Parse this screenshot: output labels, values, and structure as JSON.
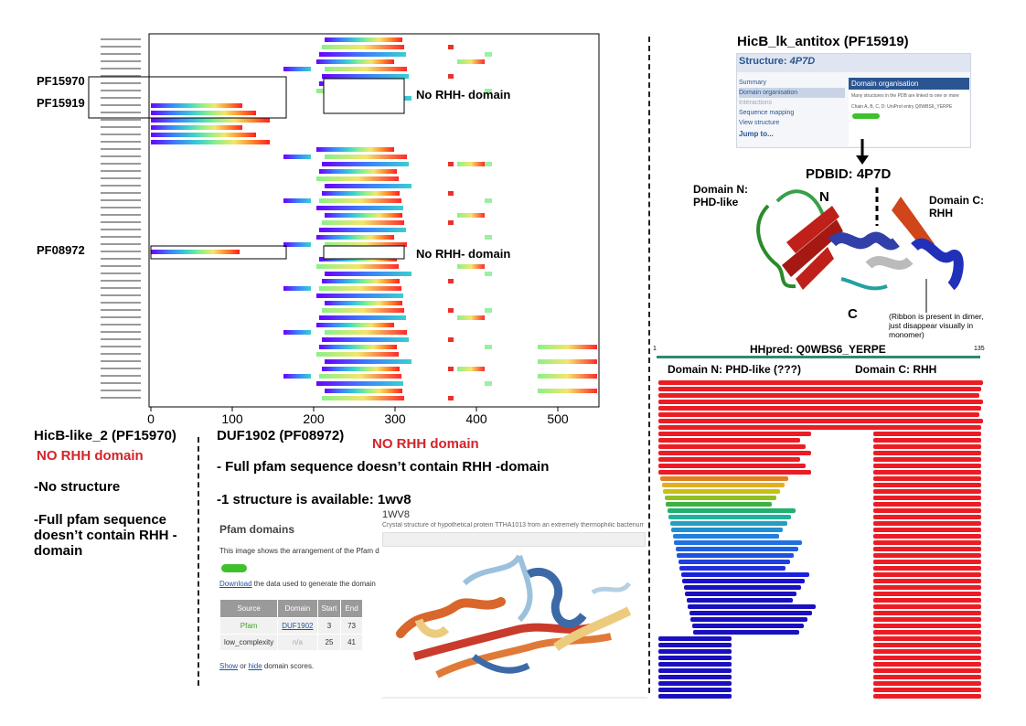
{
  "left_chart": {
    "row_labels_note": "",
    "x_ticks": [
      "0",
      "100",
      "200",
      "300",
      "400",
      "500"
    ],
    "labels": {
      "pf15970": "PF15970",
      "pf15919": "PF15919",
      "pf08972": "PF08972",
      "no_rhh_1": "No RHH- domain",
      "no_rhh_2": "No RHH- domain"
    }
  },
  "hicb2": {
    "title": "HicB-like_2 (PF15970)",
    "no_rhh": "NO RHH domain",
    "point1": "-No structure",
    "point2": "-Full pfam sequence doesn’t contain RHH -domain"
  },
  "duf": {
    "title": "DUF1902 (PF08972)",
    "no_rhh": "NO RHH domain",
    "point1": "- Full pfam sequence doesn’t contain RHH -domain",
    "point2": "-1 structure is available: 1wv8"
  },
  "pfam_panel": {
    "heading": "Pfam domains",
    "desc": "This image shows the arrangement of the Pfam d",
    "download_link": "Download",
    "download_rest": " the data used to generate the domain",
    "table_headers": [
      "Source",
      "Domain",
      "Start",
      "End"
    ],
    "rows": [
      [
        "Pfam",
        "DUF1902",
        "3",
        "73"
      ],
      [
        "low_complexity",
        "n/a",
        "25",
        "41"
      ]
    ],
    "show": "Show",
    "or": " or ",
    "hide": "hide",
    "scores": " domain scores."
  },
  "wv8": {
    "id": "1WV8",
    "caption": "Crystal structure of hypothetical protein TTHA1013 from an extremely thermophilic bacterium Thermus therm"
  },
  "hicb_antitox": {
    "title": "HicB_lk_antitox (PF15919)",
    "structure_title": "Structure: ",
    "structure_id": "4P7D",
    "menu": [
      "Summary",
      "Domain organisation",
      "Interactions",
      "Sequence mapping",
      "View structure",
      "Jump to..."
    ],
    "domain_org_header": "Domain organisation",
    "domain_org_text": "Many structures in the PDB are linked to one or more",
    "chain_text": "Chain A, B, C, D: UniProt entry Q0WBS6_YERPE",
    "pdbid": "PDBID: 4P7D",
    "domain_n": "Domain N: PHD-like",
    "domain_c": "Domain C: RHH",
    "label_n": "N",
    "label_c": "C",
    "ribbon_note": "(Ribbon is present in dimer, just disappear visually in monomer)"
  },
  "hhpred": {
    "title": "HHpred:  Q0WBS6_YERPE",
    "start": "1",
    "end": "135",
    "domain_n": "Domain N: PHD-like  (???)",
    "domain_c": "Domain C: RHH"
  },
  "colors": {
    "red_text": "#d4232a",
    "hh_red": "#ec1c24",
    "hh_teal": "#2b8a72"
  }
}
